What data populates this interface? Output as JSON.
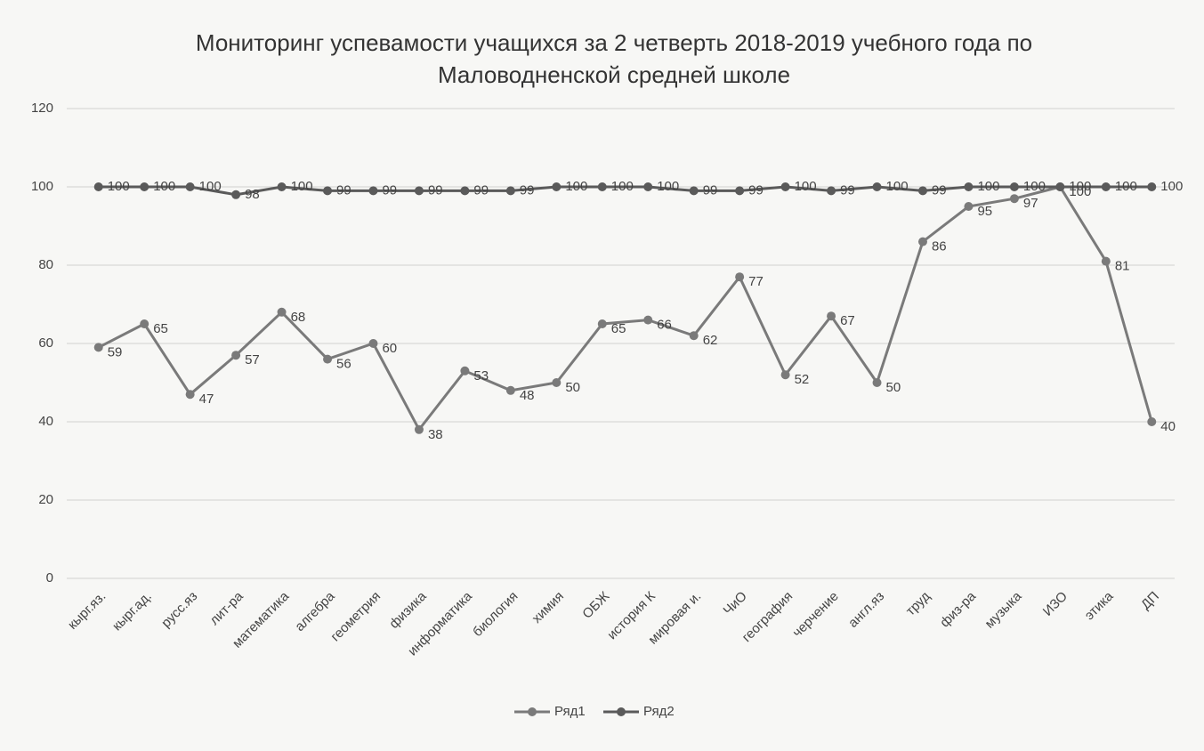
{
  "chart_data": {
    "type": "line",
    "title": "Мониторинг  успевамости учащихся за 2 четверть 2018-2019 учебного года по Маловодненской средней школе",
    "categories": [
      "кырг.яз.",
      "кырг.ад.",
      "русс.яз",
      "лит-ра",
      "математика",
      "алгебра",
      "геометрия",
      "физика",
      "информатика",
      "биология",
      "химия",
      "ОБЖ",
      "история К",
      "мировая и.",
      "ЧиО",
      "география",
      "черчение",
      "англ.яз",
      "труд",
      "физ-ра",
      "музыка",
      "ИЗО",
      "этика",
      "ДП"
    ],
    "series": [
      {
        "name": "Ряд1",
        "color": "#7a7a7a",
        "values": [
          59,
          65,
          47,
          57,
          68,
          56,
          60,
          38,
          53,
          48,
          50,
          65,
          66,
          62,
          77,
          52,
          67,
          50,
          86,
          95,
          97,
          100,
          81,
          40
        ]
      },
      {
        "name": "Ряд2",
        "color": "#5a5a5a",
        "values": [
          100,
          100,
          100,
          98,
          100,
          99,
          99,
          99,
          99,
          99,
          100,
          100,
          100,
          99,
          99,
          100,
          99,
          100,
          99,
          100,
          100,
          100,
          100,
          100
        ]
      }
    ],
    "ylim": [
      0,
      120
    ],
    "yticks": [
      0,
      20,
      40,
      60,
      80,
      100,
      120
    ],
    "grid": true,
    "legend": "bottom"
  }
}
